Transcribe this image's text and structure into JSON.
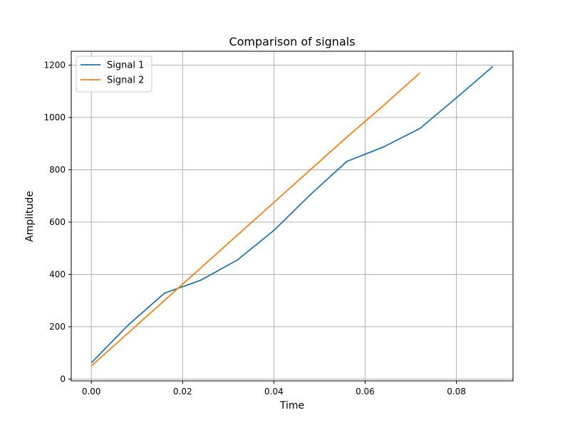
{
  "chart_data": {
    "type": "line",
    "title": "Comparison of signals",
    "xlabel": "Time",
    "ylabel": "Amplitude",
    "xlim": [
      -0.0044,
      0.0924
    ],
    "ylim": [
      -7,
      1253
    ],
    "x_ticks": [
      0.0,
      0.02,
      0.04,
      0.06,
      0.08
    ],
    "x_tick_labels": [
      "0.00",
      "0.02",
      "0.04",
      "0.06",
      "0.08"
    ],
    "y_ticks": [
      0,
      200,
      400,
      600,
      800,
      1000,
      1200
    ],
    "y_tick_labels": [
      "0",
      "200",
      "400",
      "600",
      "800",
      "1000",
      "1200"
    ],
    "grid": true,
    "legend_position": "upper-left",
    "series": [
      {
        "name": "Signal 1",
        "color": "#1f77b4",
        "x": [
          0.0,
          0.008,
          0.016,
          0.024,
          0.032,
          0.04,
          0.048,
          0.056,
          0.064,
          0.072,
          0.08,
          0.088
        ],
        "y": [
          62,
          205,
          328,
          378,
          455,
          568,
          705,
          832,
          887,
          958,
          1075,
          1195
        ]
      },
      {
        "name": "Signal 2",
        "color": "#ff7f0e",
        "x": [
          0.0,
          0.008,
          0.016,
          0.024,
          0.032,
          0.04,
          0.048,
          0.056,
          0.064,
          0.072
        ],
        "y": [
          50,
          175,
          300,
          425,
          550,
          675,
          800,
          925,
          1045,
          1170
        ]
      }
    ]
  }
}
